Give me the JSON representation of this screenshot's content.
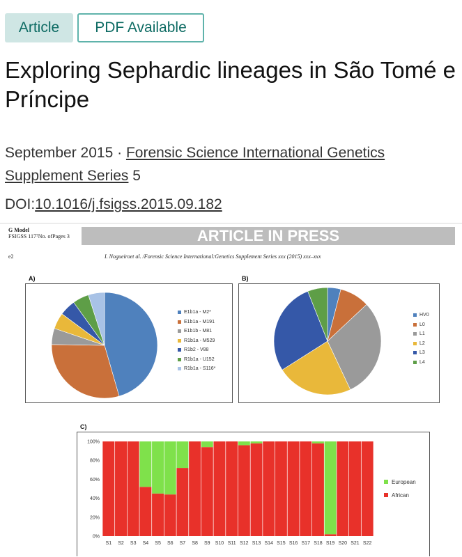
{
  "badges": {
    "article": "Article",
    "pdf": "PDF Available"
  },
  "title": "Exploring Sephardic lineages in São Tomé e Príncipe",
  "meta": {
    "date": "September 2015",
    "separator": " · ",
    "journal": "Forensic Science International Genetics Supplement Series",
    "volume": " 5"
  },
  "doi": {
    "label": "DOI:",
    "value": "10.1016/j.fsigss.2015.09.182"
  },
  "preview": {
    "gmodel_line1": "G Model",
    "gmodel_line2": "FSIGSS 117⁷No.  ofPages 3",
    "banner": "ARTICLE IN PRESS",
    "page": "e2",
    "running_head": "I. Nogueiroet al. /Forensic Science  International:Genetics Supplement Series  xxx (2015) xxx–xxx",
    "panel_a_label": "A)",
    "panel_b_label": "B)",
    "panel_c_label": "C)"
  },
  "chart_data": [
    {
      "type": "pie",
      "title": "A)",
      "labels": [
        "E1b1a - M2*",
        "E1b1a - M191",
        "E1b1b - M81",
        "R1b1a - M529",
        "R1b2 - V88",
        "R1b1a - U152",
        "R1b1a - S116*"
      ],
      "values": [
        46,
        30,
        5,
        5,
        5,
        5,
        5
      ],
      "colors": [
        "#4f81bd",
        "#c0504d",
        "#9bbb59",
        "#8064a2",
        "#4bacc6",
        "#f79646",
        "#a5b6d9"
      ],
      "slice_colors": [
        "#4f81bd",
        "#c9703a",
        "#9a9a9a",
        "#e9b83a",
        "#3558a8",
        "#5e9e47",
        "#a8c2e6"
      ],
      "legend_colors": [
        "#4f81bd",
        "#c9703a",
        "#9a9a9a",
        "#e9b83a",
        "#3558a8",
        "#5e9e47",
        "#a8c2e6"
      ],
      "legend_position": "right"
    },
    {
      "type": "pie",
      "title": "B)",
      "labels": [
        "HV0",
        "L0",
        "L1",
        "L2",
        "L3",
        "L4"
      ],
      "values": [
        4,
        9,
        30,
        23,
        28,
        6
      ],
      "colors": [
        "#4f81bd",
        "#c9703a",
        "#9a9a9a",
        "#e9b83a",
        "#3558a8",
        "#5e9e47"
      ],
      "legend_position": "right"
    },
    {
      "type": "bar",
      "stacked": true,
      "title": "C)",
      "categories": [
        "S1",
        "S2",
        "S3",
        "S4",
        "S5",
        "S6",
        "S7",
        "S8",
        "S9",
        "S10",
        "S11",
        "S12",
        "S13",
        "S14",
        "S15",
        "S16",
        "S17",
        "S18",
        "S19",
        "S20",
        "S21",
        "S22"
      ],
      "series": [
        {
          "name": "African",
          "color": "#e8312a",
          "values": [
            100,
            100,
            100,
            52,
            45,
            44,
            72,
            100,
            94,
            100,
            100,
            96,
            98,
            100,
            100,
            100,
            100,
            98,
            2,
            100,
            100,
            100
          ]
        },
        {
          "name": "European",
          "color": "#7fe14b",
          "values": [
            0,
            0,
            0,
            48,
            55,
            56,
            28,
            0,
            6,
            0,
            0,
            4,
            2,
            0,
            0,
            0,
            0,
            2,
            98,
            0,
            0,
            0
          ]
        }
      ],
      "yticks": [
        "0%",
        "20%",
        "40%",
        "60%",
        "80%",
        "100%"
      ],
      "ylim": [
        0,
        100
      ],
      "legend": [
        "European",
        "African"
      ],
      "legend_position": "right"
    }
  ]
}
